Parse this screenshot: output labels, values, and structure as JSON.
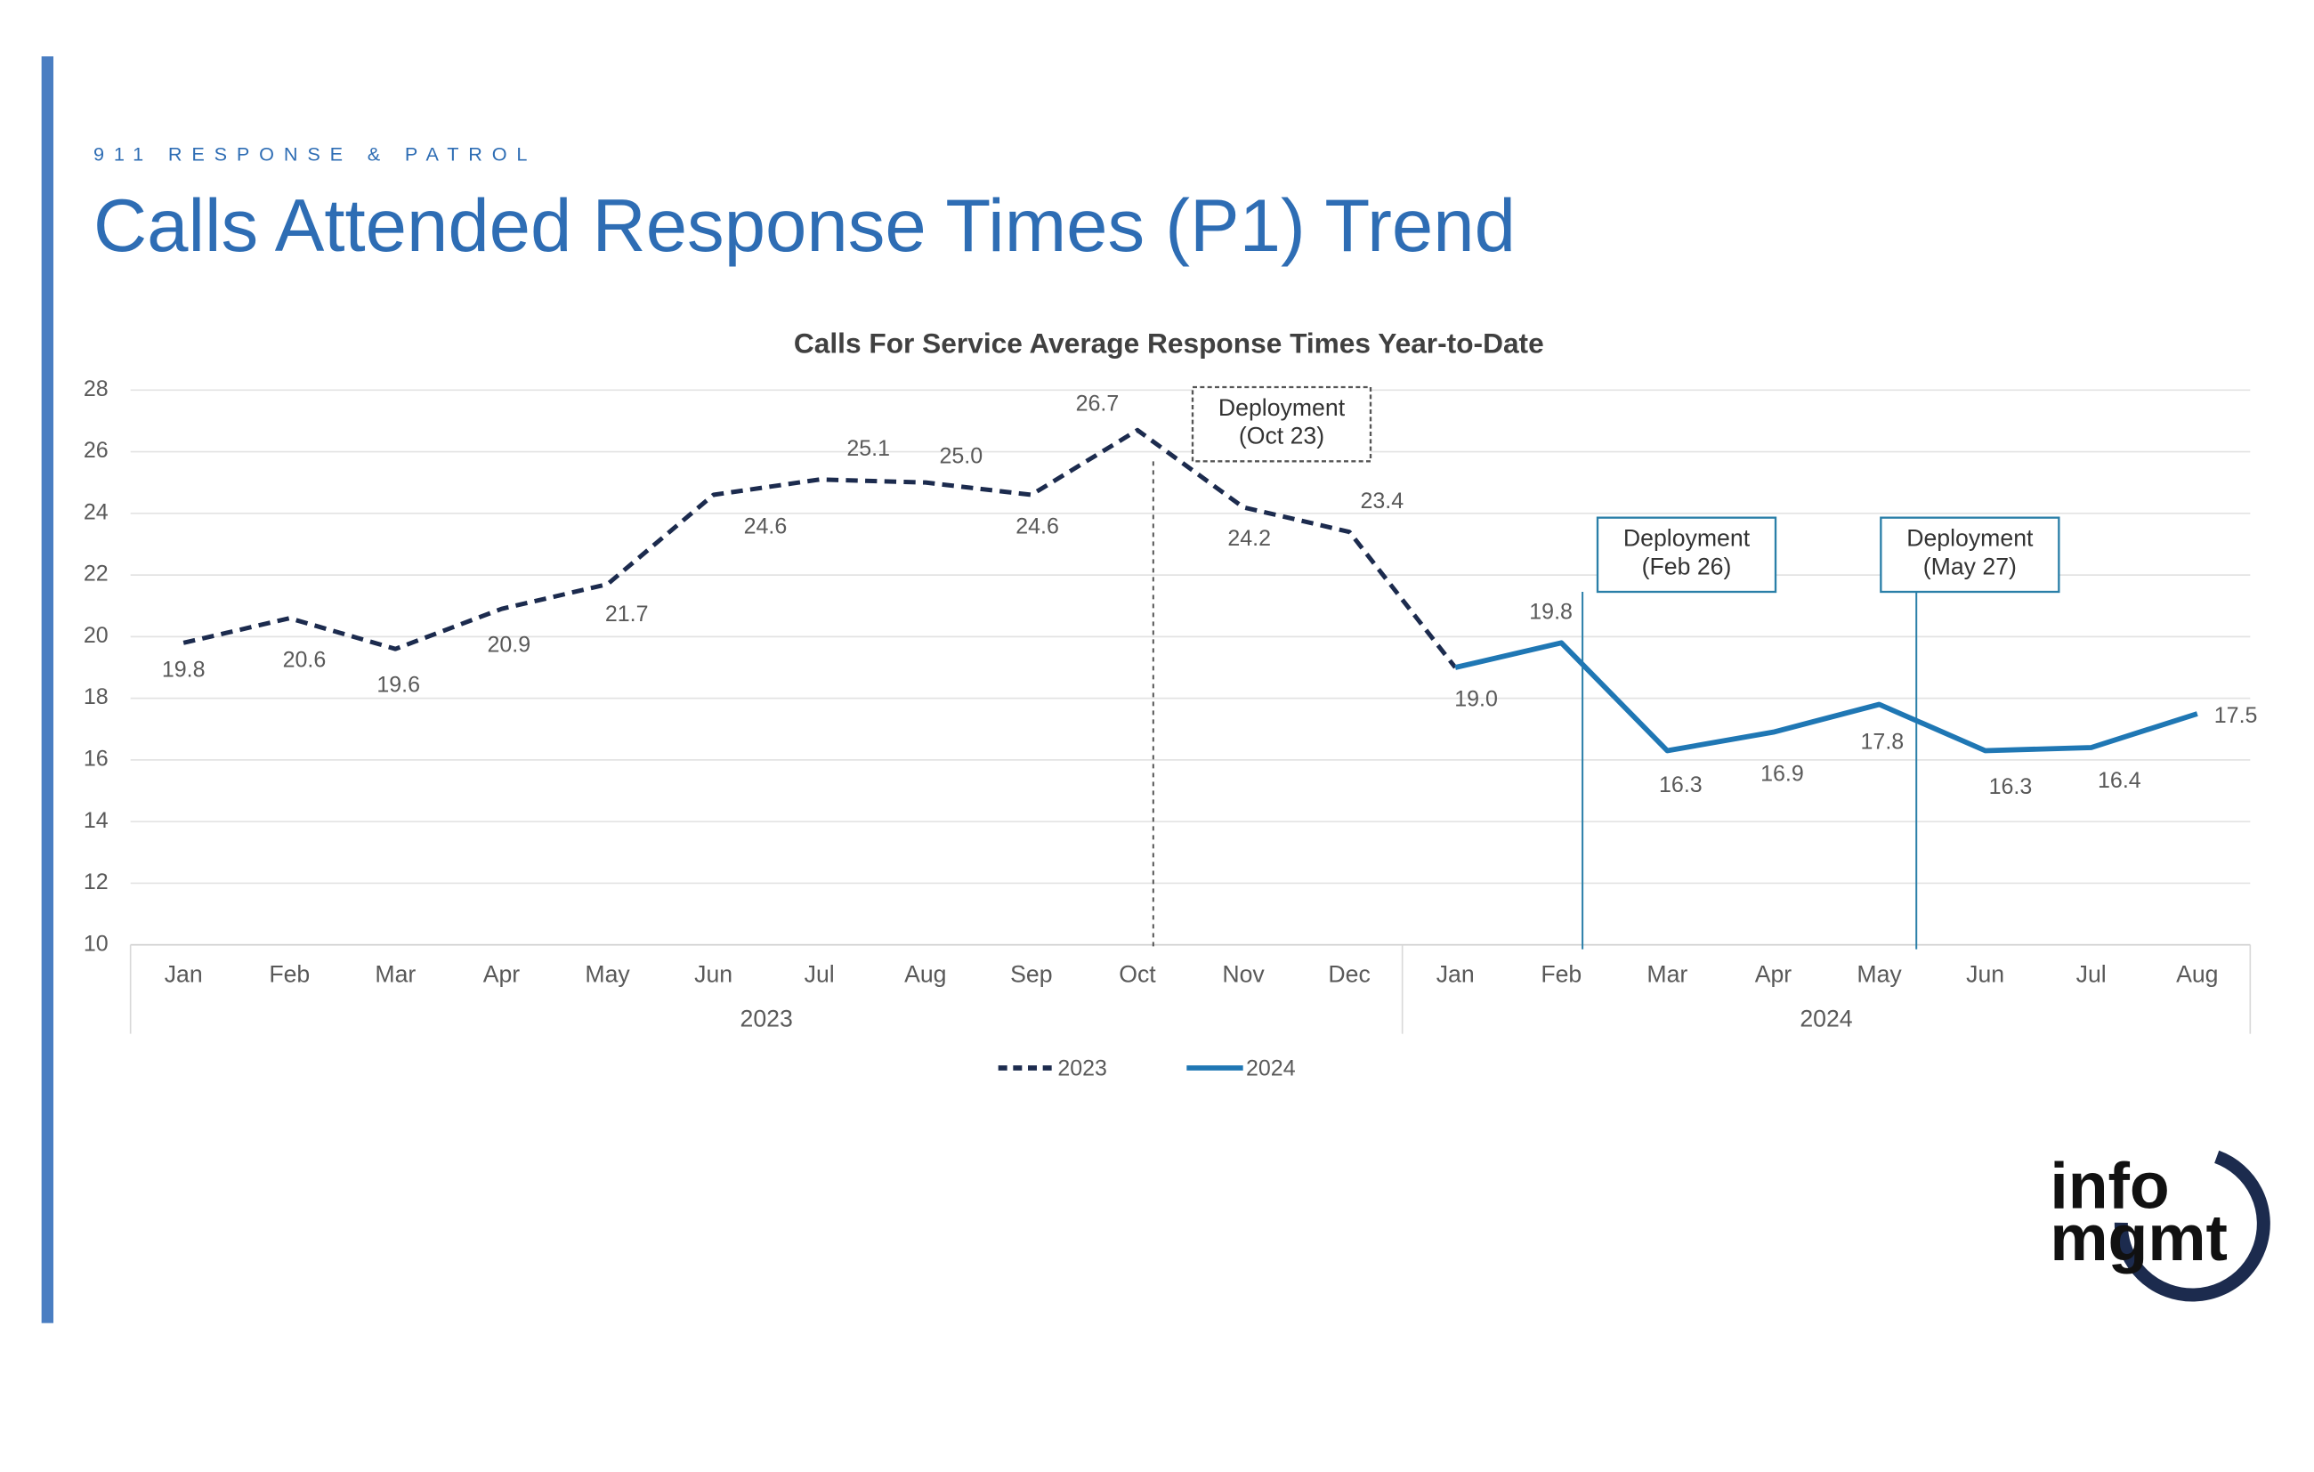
{
  "header": {
    "kicker": "911 RESPONSE & PATROL",
    "title": "Calls Attended Response Times (P1) Trend"
  },
  "logo": {
    "line1": "info",
    "line2": "mgmt"
  },
  "chart_data": {
    "type": "line",
    "title": "Calls For Service Average Response Times Year-to-Date",
    "category_groups": [
      {
        "label": "2023",
        "categories": [
          "Jan",
          "Feb",
          "Mar",
          "Apr",
          "May",
          "Jun",
          "Jul",
          "Aug",
          "Sep",
          "Oct",
          "Nov",
          "Dec"
        ]
      },
      {
        "label": "2024",
        "categories": [
          "Jan",
          "Feb",
          "Mar",
          "Apr",
          "May",
          "Jun",
          "Jul",
          "Aug"
        ]
      }
    ],
    "series": [
      {
        "name": "2023",
        "color": "#1c2b4e",
        "dashed": true,
        "values": [
          19.8,
          20.6,
          19.6,
          20.9,
          21.7,
          24.6,
          25.1,
          25.0,
          24.6,
          26.7,
          24.2,
          23.4,
          19.0,
          null,
          null,
          null,
          null,
          null,
          null,
          null
        ]
      },
      {
        "name": "2024",
        "color": "#1f77b4",
        "dashed": false,
        "values": [
          null,
          null,
          null,
          null,
          null,
          null,
          null,
          null,
          null,
          null,
          null,
          null,
          19.0,
          19.8,
          16.3,
          16.9,
          17.8,
          16.3,
          16.4,
          17.5
        ]
      }
    ],
    "value_labels": [
      [
        "19.8",
        "20.6",
        "19.6",
        "20.9",
        "21.7",
        "24.6",
        "25.1",
        "25.0",
        "24.6",
        "26.7",
        "24.2",
        "23.4",
        null,
        null,
        null,
        null,
        null,
        null,
        null,
        null
      ],
      [
        null,
        null,
        null,
        null,
        null,
        null,
        null,
        null,
        null,
        null,
        null,
        null,
        "19.0",
        "19.8",
        "16.3",
        "16.9",
        "17.8",
        "16.3",
        "16.4",
        "17.5"
      ]
    ],
    "annotations": [
      {
        "lines": [
          "Deployment",
          "(Oct 23)"
        ],
        "dashed": true,
        "color": "#555555"
      },
      {
        "lines": [
          "Deployment",
          "(Feb 26)"
        ],
        "dashed": false,
        "color": "#2a7fa8"
      },
      {
        "lines": [
          "Deployment",
          "(May 27)"
        ],
        "dashed": false,
        "color": "#2a7fa8"
      }
    ],
    "ylim": [
      10,
      28
    ],
    "yticks": [
      10,
      12,
      14,
      16,
      18,
      20,
      22,
      24,
      26,
      28
    ],
    "grid": true,
    "legend": "bottom"
  }
}
